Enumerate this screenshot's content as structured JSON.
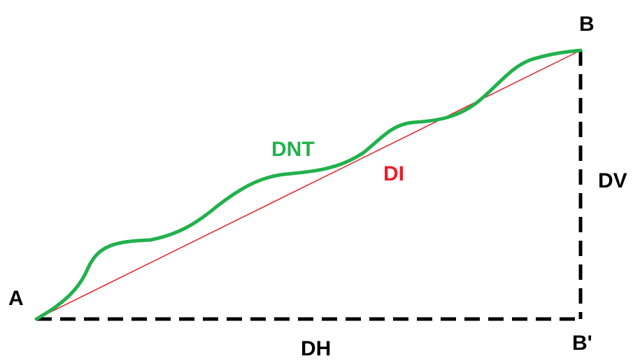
{
  "labels": {
    "a": "A",
    "b": "B",
    "b_prime": "B'",
    "dnt": "DNT",
    "di": "DI",
    "dv": "DV",
    "dh": "DH"
  }
}
